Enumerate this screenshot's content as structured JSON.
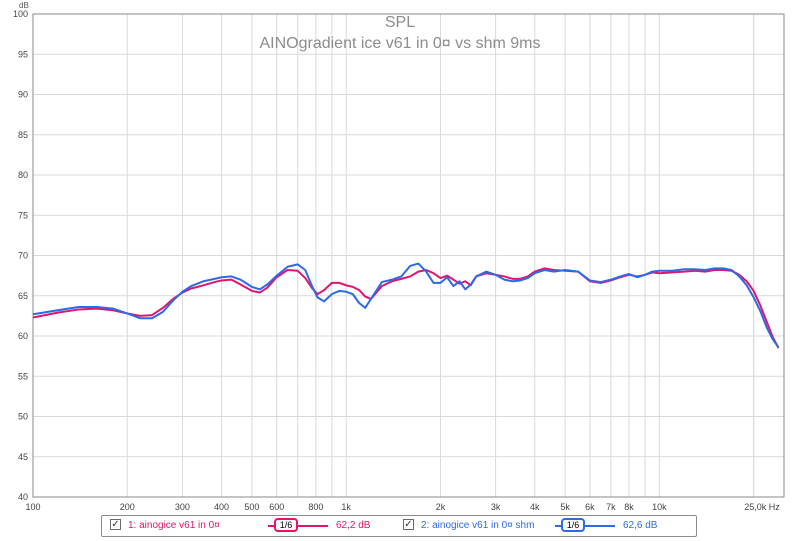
{
  "chart_data": {
    "type": "line",
    "title": "SPL",
    "subtitle": "AINOgradient ice v61 in 0¤ vs shm 9ms",
    "ylabel": "dB",
    "xlabel": "",
    "x_unit_label": "Hz",
    "x_scale": "log",
    "xlim": [
      100,
      25000
    ],
    "ylim": [
      40,
      100
    ],
    "y_ticks": [
      40,
      45,
      50,
      55,
      60,
      65,
      70,
      75,
      80,
      85,
      90,
      95,
      100
    ],
    "x_tick_labels": [
      {
        "value": 100,
        "label": "100"
      },
      {
        "value": 200,
        "label": "200"
      },
      {
        "value": 300,
        "label": "300"
      },
      {
        "value": 400,
        "label": "400"
      },
      {
        "value": 500,
        "label": "500"
      },
      {
        "value": 600,
        "label": "600"
      },
      {
        "value": 800,
        "label": "800"
      },
      {
        "value": 1000,
        "label": "1k"
      },
      {
        "value": 2000,
        "label": "2k"
      },
      {
        "value": 3000,
        "label": "3k"
      },
      {
        "value": 4000,
        "label": "4k"
      },
      {
        "value": 5000,
        "label": "5k"
      },
      {
        "value": 6000,
        "label": "6k"
      },
      {
        "value": 7000,
        "label": "7k"
      },
      {
        "value": 8000,
        "label": "8k"
      },
      {
        "value": 10000,
        "label": "10k"
      },
      {
        "value": 25000,
        "label": "25,0k Hz"
      }
    ],
    "grid": true,
    "series": [
      {
        "name": "1: ainogice v61 in 0¤",
        "color": "#e0156d",
        "smoothing": "1/6",
        "level": "62,2 dB",
        "points": [
          [
            100,
            62.3
          ],
          [
            120,
            62.9
          ],
          [
            140,
            63.3
          ],
          [
            160,
            63.4
          ],
          [
            180,
            63.2
          ],
          [
            200,
            62.8
          ],
          [
            220,
            62.5
          ],
          [
            240,
            62.6
          ],
          [
            260,
            63.5
          ],
          [
            280,
            64.6
          ],
          [
            300,
            65.4
          ],
          [
            320,
            65.9
          ],
          [
            350,
            66.3
          ],
          [
            380,
            66.7
          ],
          [
            400,
            66.9
          ],
          [
            430,
            67.0
          ],
          [
            460,
            66.4
          ],
          [
            500,
            65.6
          ],
          [
            530,
            65.4
          ],
          [
            560,
            66.0
          ],
          [
            600,
            67.3
          ],
          [
            650,
            68.2
          ],
          [
            700,
            68.1
          ],
          [
            740,
            67.2
          ],
          [
            780,
            65.9
          ],
          [
            810,
            65.2
          ],
          [
            850,
            65.7
          ],
          [
            900,
            66.6
          ],
          [
            950,
            66.6
          ],
          [
            1000,
            66.3
          ],
          [
            1050,
            66.1
          ],
          [
            1100,
            65.7
          ],
          [
            1150,
            64.9
          ],
          [
            1200,
            64.6
          ],
          [
            1300,
            66.2
          ],
          [
            1400,
            66.8
          ],
          [
            1500,
            67.1
          ],
          [
            1600,
            67.4
          ],
          [
            1700,
            68.0
          ],
          [
            1800,
            68.2
          ],
          [
            1900,
            67.8
          ],
          [
            2000,
            67.2
          ],
          [
            2100,
            67.5
          ],
          [
            2200,
            67.0
          ],
          [
            2300,
            66.5
          ],
          [
            2400,
            66.8
          ],
          [
            2500,
            66.3
          ],
          [
            2600,
            67.4
          ],
          [
            2800,
            67.8
          ],
          [
            3000,
            67.6
          ],
          [
            3200,
            67.4
          ],
          [
            3400,
            67.1
          ],
          [
            3600,
            67.1
          ],
          [
            3800,
            67.4
          ],
          [
            4000,
            68.0
          ],
          [
            4300,
            68.4
          ],
          [
            4600,
            68.2
          ],
          [
            5000,
            68.1
          ],
          [
            5500,
            68.0
          ],
          [
            6000,
            66.8
          ],
          [
            6500,
            66.6
          ],
          [
            7000,
            66.9
          ],
          [
            7500,
            67.3
          ],
          [
            8000,
            67.6
          ],
          [
            8500,
            67.4
          ],
          [
            9000,
            67.6
          ],
          [
            9500,
            67.9
          ],
          [
            10000,
            67.8
          ],
          [
            11000,
            67.9
          ],
          [
            12000,
            68.0
          ],
          [
            13000,
            68.1
          ],
          [
            14000,
            68.0
          ],
          [
            15000,
            68.2
          ],
          [
            16000,
            68.2
          ],
          [
            17000,
            68.1
          ],
          [
            18000,
            67.6
          ],
          [
            19000,
            66.8
          ],
          [
            20000,
            65.6
          ],
          [
            21000,
            63.8
          ],
          [
            22000,
            61.8
          ],
          [
            23000,
            59.9
          ],
          [
            24000,
            58.5
          ]
        ]
      },
      {
        "name": "2: ainogice v61 in 0¤ shm",
        "color": "#2d6ae6",
        "smoothing": "1/6",
        "level": "62,6 dB",
        "points": [
          [
            100,
            62.7
          ],
          [
            120,
            63.2
          ],
          [
            140,
            63.6
          ],
          [
            160,
            63.6
          ],
          [
            180,
            63.4
          ],
          [
            200,
            62.8
          ],
          [
            220,
            62.2
          ],
          [
            240,
            62.2
          ],
          [
            260,
            63.0
          ],
          [
            280,
            64.4
          ],
          [
            300,
            65.5
          ],
          [
            320,
            66.2
          ],
          [
            350,
            66.8
          ],
          [
            380,
            67.1
          ],
          [
            400,
            67.3
          ],
          [
            430,
            67.4
          ],
          [
            460,
            67.0
          ],
          [
            500,
            66.1
          ],
          [
            530,
            65.8
          ],
          [
            560,
            66.4
          ],
          [
            600,
            67.5
          ],
          [
            650,
            68.6
          ],
          [
            700,
            68.9
          ],
          [
            740,
            68.2
          ],
          [
            780,
            66.1
          ],
          [
            810,
            64.8
          ],
          [
            850,
            64.3
          ],
          [
            900,
            65.2
          ],
          [
            950,
            65.6
          ],
          [
            1000,
            65.5
          ],
          [
            1050,
            65.2
          ],
          [
            1100,
            64.1
          ],
          [
            1150,
            63.5
          ],
          [
            1200,
            64.6
          ],
          [
            1300,
            66.7
          ],
          [
            1400,
            67.0
          ],
          [
            1500,
            67.4
          ],
          [
            1600,
            68.7
          ],
          [
            1700,
            69.0
          ],
          [
            1800,
            68.0
          ],
          [
            1900,
            66.6
          ],
          [
            2000,
            66.6
          ],
          [
            2100,
            67.3
          ],
          [
            2200,
            66.2
          ],
          [
            2300,
            66.8
          ],
          [
            2400,
            65.8
          ],
          [
            2500,
            66.4
          ],
          [
            2600,
            67.4
          ],
          [
            2800,
            68.0
          ],
          [
            3000,
            67.6
          ],
          [
            3200,
            67.0
          ],
          [
            3400,
            66.8
          ],
          [
            3600,
            66.9
          ],
          [
            3800,
            67.2
          ],
          [
            4000,
            67.8
          ],
          [
            4300,
            68.2
          ],
          [
            4600,
            68.0
          ],
          [
            5000,
            68.2
          ],
          [
            5500,
            68.0
          ],
          [
            6000,
            66.9
          ],
          [
            6500,
            66.7
          ],
          [
            7000,
            67.0
          ],
          [
            7500,
            67.4
          ],
          [
            8000,
            67.7
          ],
          [
            8500,
            67.3
          ],
          [
            9000,
            67.6
          ],
          [
            9500,
            68.0
          ],
          [
            10000,
            68.1
          ],
          [
            11000,
            68.1
          ],
          [
            12000,
            68.3
          ],
          [
            13000,
            68.3
          ],
          [
            14000,
            68.2
          ],
          [
            15000,
            68.4
          ],
          [
            16000,
            68.4
          ],
          [
            17000,
            68.2
          ],
          [
            18000,
            67.4
          ],
          [
            19000,
            66.3
          ],
          [
            20000,
            64.8
          ],
          [
            21000,
            63.1
          ],
          [
            22000,
            61.1
          ],
          [
            23000,
            59.6
          ],
          [
            24000,
            58.6
          ]
        ]
      }
    ]
  },
  "legend": {
    "items": [
      {
        "label": "1: ainogice v61 in 0¤",
        "smoothing": "1/6",
        "level": "62,2 dB",
        "color": "#e0156d",
        "checked": "✓"
      },
      {
        "label": "2: ainogice v61 in 0¤ shm",
        "smoothing": "1/6",
        "level": "62,6 dB",
        "color": "#2d6ae6",
        "checked": "✓"
      }
    ]
  }
}
